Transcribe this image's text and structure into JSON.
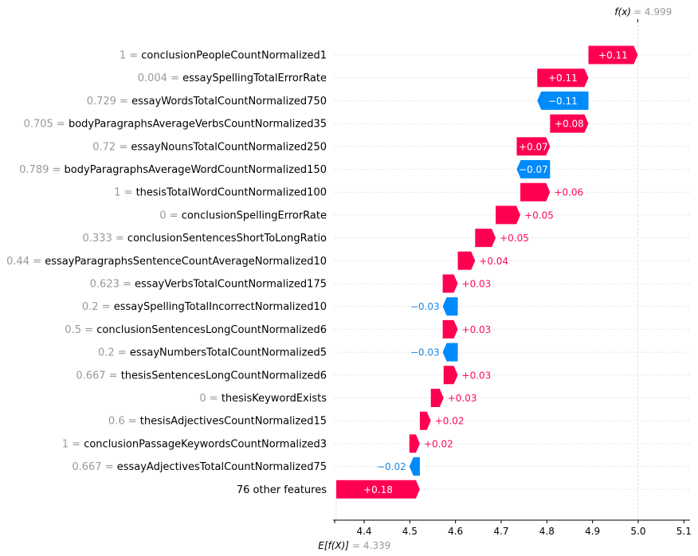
{
  "chart_data": {
    "type": "waterfall",
    "base_value_label": "E[f(X)]",
    "base_value": 4.339,
    "base_value_text": "4.339",
    "output_value_label": "f(x)",
    "output_value": 4.999,
    "output_value_text": "4.999",
    "xlim": [
      4.33,
      5.11
    ],
    "x_ticks": [
      "4.4",
      "4.5",
      "4.6",
      "4.7",
      "4.8",
      "4.9",
      "5.0",
      "5.1"
    ],
    "grid": "dotted horizontal per row",
    "colors": {
      "positive": "#ff0051",
      "negative": "#008bfb",
      "positive_text": "#ff0d57",
      "negative_text": "#1e88e5"
    },
    "features": [
      {
        "value": "1",
        "name": "conclusionPeopleCountNormalized1",
        "shap": 0.108,
        "label": "+0.11"
      },
      {
        "value": "0.004",
        "name": "essaySpellingTotalErrorRate",
        "shap": 0.112,
        "label": "+0.11"
      },
      {
        "value": "0.729",
        "name": "essayWordsTotalCountNormalized750",
        "shap": -0.112,
        "label": "−0.11"
      },
      {
        "value": "0.705",
        "name": "bodyParagraphsAverageVerbsCountNormalized35",
        "shap": 0.084,
        "label": "+0.08"
      },
      {
        "value": "0.72",
        "name": "essayNounsTotalCountNormalized250",
        "shap": 0.073,
        "label": "+0.07"
      },
      {
        "value": "0.789",
        "name": "bodyParagraphsAverageWordCountNormalized150",
        "shap": -0.073,
        "label": "−0.07"
      },
      {
        "value": "1",
        "name": "thesisTotalWordCountNormalized100",
        "shap": 0.065,
        "label": "+0.06"
      },
      {
        "value": "0",
        "name": "conclusionSpellingErrorRate",
        "shap": 0.054,
        "label": "+0.05"
      },
      {
        "value": "0.333",
        "name": "conclusionSentencesShortToLongRatio",
        "shap": 0.045,
        "label": "+0.05"
      },
      {
        "value": "0.44",
        "name": "essayParagraphsSentenceCountAverageNormalized10",
        "shap": 0.038,
        "label": "+0.04"
      },
      {
        "value": "0.623",
        "name": "essayVerbsTotalCountNormalized175",
        "shap": 0.033,
        "label": "+0.03"
      },
      {
        "value": "0.2",
        "name": "essaySpellingTotalIncorrectNormalized10",
        "shap": -0.033,
        "label": "−0.03"
      },
      {
        "value": "0.5",
        "name": "conclusionSentencesLongCountNormalized6",
        "shap": 0.033,
        "label": "+0.03"
      },
      {
        "value": "0.2",
        "name": "essayNumbersTotalCountNormalized5",
        "shap": -0.033,
        "label": "−0.03"
      },
      {
        "value": "0.667",
        "name": "thesisSentencesLongCountNormalized6",
        "shap": 0.031,
        "label": "+0.03"
      },
      {
        "value": "0",
        "name": "thesisKeywordExists",
        "shap": 0.028,
        "label": "+0.03"
      },
      {
        "value": "0.6",
        "name": "thesisAdjectivesCountNormalized15",
        "shap": 0.024,
        "label": "+0.02"
      },
      {
        "value": "1",
        "name": "conclusionPassageKeywordsCountNormalized3",
        "shap": 0.023,
        "label": "+0.02"
      },
      {
        "value": "0.667",
        "name": "essayAdjectivesTotalCountNormalized75",
        "shap": -0.023,
        "label": "−0.02"
      },
      {
        "value": "",
        "name": "76 other features",
        "shap": 0.183,
        "label": "+0.18"
      }
    ]
  }
}
